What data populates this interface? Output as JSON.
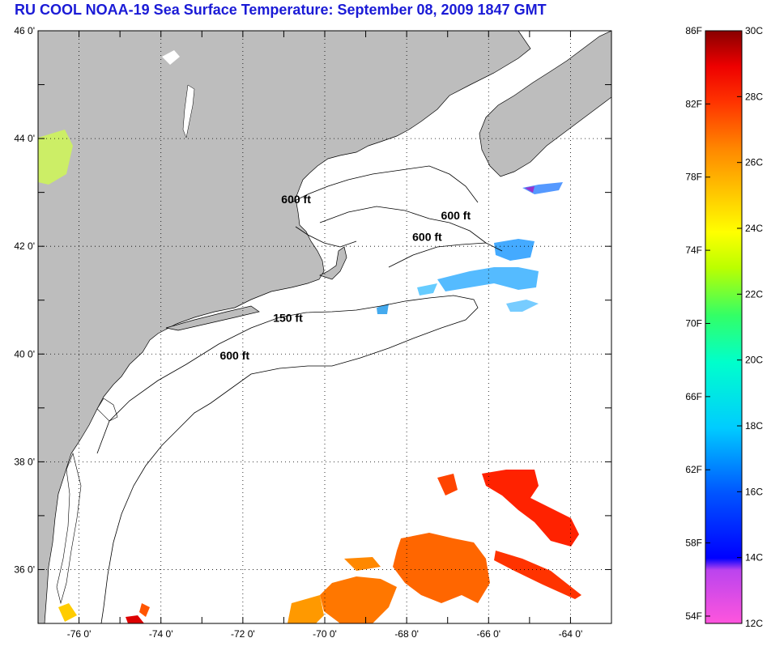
{
  "title": "RU COOL  NOAA-19  Sea Surface Temperature:  September 08, 2009 1847 GMT",
  "map": {
    "lat_ticks": [
      {
        "value": 46,
        "label": "46 0'"
      },
      {
        "value": 44,
        "label": "44 0'"
      },
      {
        "value": 42,
        "label": "42 0'"
      },
      {
        "value": 40,
        "label": "40 0'"
      },
      {
        "value": 38,
        "label": "38 0'"
      },
      {
        "value": 36,
        "label": "36 0'"
      }
    ],
    "lon_ticks": [
      {
        "value": -76,
        "label": "-76 0'"
      },
      {
        "value": -74,
        "label": "-74 0'"
      },
      {
        "value": -72,
        "label": "-72 0'"
      },
      {
        "value": -70,
        "label": "-70 0'"
      },
      {
        "value": -68,
        "label": "-68 0'"
      },
      {
        "value": -66,
        "label": "-66 0'"
      },
      {
        "value": -64,
        "label": "-64 0'"
      }
    ],
    "lon_range": [
      -77,
      -63
    ],
    "lat_range": [
      35,
      46
    ],
    "grid": "dotted",
    "contour_labels": [
      {
        "text": "600 ft",
        "lon": -70.7,
        "lat": 42.8
      },
      {
        "text": "600 ft",
        "lon": -66.8,
        "lat": 42.5
      },
      {
        "text": "600 ft",
        "lon": -67.5,
        "lat": 42.1
      },
      {
        "text": "150 ft",
        "lon": -70.9,
        "lat": 40.6
      },
      {
        "text": "600 ft",
        "lon": -72.2,
        "lat": 39.9
      }
    ],
    "land_color": "#bdbdbd",
    "water_color": "#ffffff"
  },
  "colorbar": {
    "range_c": [
      12,
      30
    ],
    "celsius_labels": [
      "30C",
      "28C",
      "26C",
      "24C",
      "22C",
      "20C",
      "18C",
      "16C",
      "14C",
      "12C"
    ],
    "fahrenheit_labels": [
      "86F",
      "82F",
      "78F",
      "74F",
      "70F",
      "66F",
      "62F",
      "58F",
      "54F"
    ],
    "colors": [
      "#ff66cc",
      "#9933ff",
      "#0000ff",
      "#0066ff",
      "#00ccff",
      "#00ffcc",
      "#33ff66",
      "#ccff00",
      "#ffff00",
      "#ffcc00",
      "#ff9900",
      "#ff6600",
      "#ff3300",
      "#ff0000",
      "#cc0000",
      "#800000"
    ]
  }
}
